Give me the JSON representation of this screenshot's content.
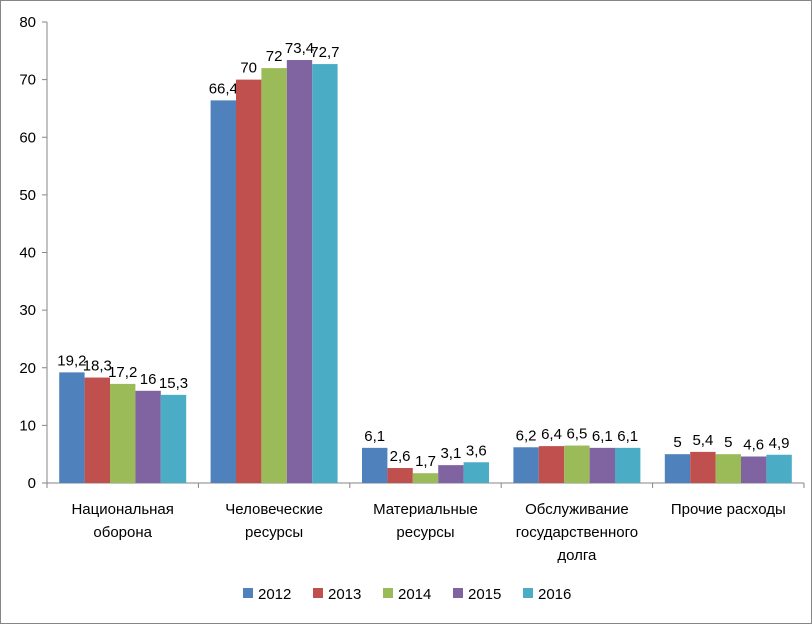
{
  "chart_data": {
    "type": "bar",
    "categories": [
      [
        "Национальная",
        "оборона"
      ],
      [
        "Человеческие",
        "ресурсы"
      ],
      [
        "Материальные",
        "ресурсы"
      ],
      [
        "Обслуживание",
        "государственного",
        "долга"
      ],
      [
        "Прочие расходы"
      ]
    ],
    "series": [
      {
        "name": "2012",
        "color": "#4F81BD",
        "values": [
          19.2,
          66.4,
          6.1,
          6.2,
          5.0
        ],
        "labels": [
          "19,2",
          "66,4",
          "6,1",
          "6,2",
          "5"
        ]
      },
      {
        "name": "2013",
        "color": "#C0504D",
        "values": [
          18.3,
          70.0,
          2.6,
          6.4,
          5.4
        ],
        "labels": [
          "18,3",
          "70",
          "2,6",
          "6,4",
          "5,4"
        ]
      },
      {
        "name": "2014",
        "color": "#9BBB59",
        "values": [
          17.2,
          72.0,
          1.7,
          6.5,
          5.0
        ],
        "labels": [
          "17,2",
          "72",
          "1,7",
          "6,5",
          "5"
        ]
      },
      {
        "name": "2015",
        "color": "#8064A2",
        "values": [
          16.0,
          73.4,
          3.1,
          6.1,
          4.6
        ],
        "labels": [
          "16",
          "73,4",
          "3,1",
          "6,1",
          "4,6"
        ]
      },
      {
        "name": "2016",
        "color": "#4BACC6",
        "values": [
          15.3,
          72.7,
          3.6,
          6.1,
          4.9
        ],
        "labels": [
          "15,3",
          "72,7",
          "3,6",
          "6,1",
          "4,9"
        ]
      }
    ],
    "ylim": [
      0,
      80
    ],
    "yticks": [
      0,
      10,
      20,
      30,
      40,
      50,
      60,
      70,
      80
    ],
    "grid": false,
    "legend_position": "bottom",
    "title": "",
    "xlabel": "",
    "ylabel": ""
  }
}
